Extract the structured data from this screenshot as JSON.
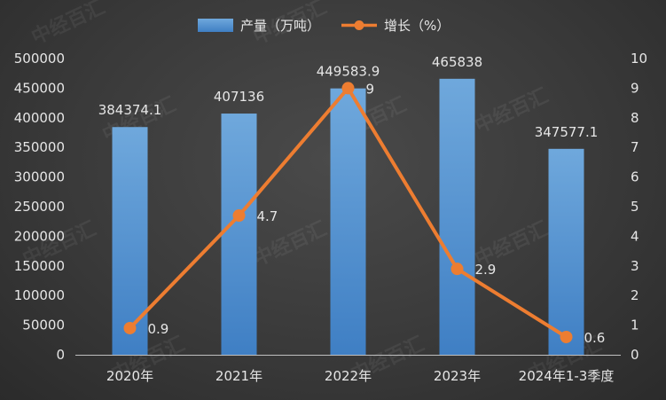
{
  "chart_data": {
    "type": "bar+line",
    "categories": [
      "2020年",
      "2021年",
      "2022年",
      "2023年",
      "2024年1-3季度"
    ],
    "series": [
      {
        "name": "产量（万吨）",
        "type": "bar",
        "axis": "left",
        "values": [
          384374.1,
          407136,
          449583.9,
          465838,
          347577.1
        ],
        "labels": [
          "384374.1",
          "407136",
          "449583.9",
          "465838",
          "347577.1"
        ],
        "color": "#5b9bd5"
      },
      {
        "name": "增长（%）",
        "type": "line",
        "axis": "right",
        "values": [
          0.9,
          4.7,
          9,
          2.9,
          0.6
        ],
        "labels": [
          "0.9",
          "4.7",
          "9",
          "2.9",
          "0.6"
        ],
        "color": "#ed7d31"
      }
    ],
    "y_left": {
      "min": 0,
      "max": 500000,
      "step": 50000
    },
    "y_right": {
      "min": 0,
      "max": 10,
      "step": 1
    },
    "legend_position": "top-center",
    "grid": false,
    "watermark": "中经百汇"
  }
}
